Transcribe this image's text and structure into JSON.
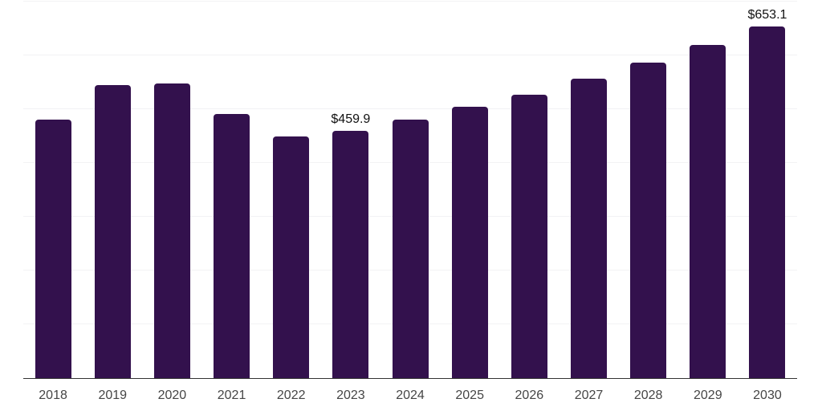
{
  "chart_data": {
    "type": "bar",
    "categories": [
      "2018",
      "2019",
      "2020",
      "2021",
      "2022",
      "2023",
      "2024",
      "2025",
      "2026",
      "2027",
      "2028",
      "2029",
      "2030"
    ],
    "values": [
      481,
      545,
      548,
      491,
      449,
      459.9,
      480,
      504,
      527,
      556,
      586,
      619,
      653.1
    ],
    "data_labels": [
      {
        "index": 5,
        "text": "$459.9"
      },
      {
        "index": 12,
        "text": "$653.1"
      }
    ],
    "value_prefix": "$",
    "ylim": [
      0,
      700
    ],
    "gridline_step": 100,
    "grid": "horizontal-only",
    "legend": "none",
    "y_axis_labels": "none"
  },
  "styles": {
    "bar_color": "#33114D",
    "gridline_color": "#F2F2F4",
    "axis_color": "#333333",
    "tick_label_color": "#454545",
    "data_label_color": "#111111",
    "background_color": "#FFFFFF"
  }
}
